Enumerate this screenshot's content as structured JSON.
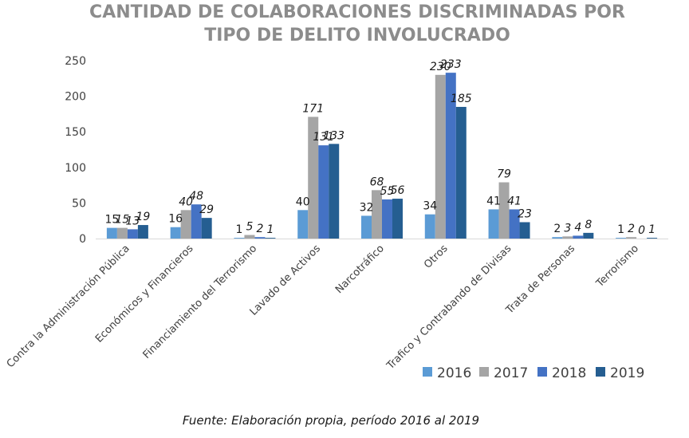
{
  "chart_data": {
    "type": "bar",
    "title_lines": [
      "CANTIDAD DE COLABORACIONES DISCRIMINADAS POR",
      "TIPO DE DELITO INVOLUCRADO"
    ],
    "categories": [
      "Contra la Administración Pública",
      "Económicos y Financieros",
      "Financiamiento del Terrorismo",
      "Lavado de Activos",
      "Narcotráfico",
      "Otros",
      "Trafico y Contrabando de Divisas",
      "Trata de Personas",
      "Terrorismo"
    ],
    "series": [
      {
        "name": "2016",
        "color": "#5b9bd5",
        "values": [
          15,
          16,
          1,
          40,
          32,
          34,
          41,
          2,
          1
        ]
      },
      {
        "name": "2017",
        "color": "#a5a5a5",
        "values": [
          15,
          40,
          5,
          171,
          68,
          230,
          79,
          3,
          2
        ]
      },
      {
        "name": "2018",
        "color": "#4472c4",
        "values": [
          13,
          48,
          2,
          131,
          55,
          233,
          41,
          4,
          0
        ]
      },
      {
        "name": "2019",
        "color": "#255e91",
        "values": [
          19,
          29,
          1,
          133,
          56,
          185,
          23,
          8,
          1
        ]
      }
    ],
    "ylim": [
      0,
      250
    ],
    "yticks": [
      0,
      50,
      100,
      150,
      200,
      250
    ],
    "grid": false,
    "legend_position": "bottom-right",
    "source": "Fuente: Elaboración propia, período 2016 al 2019"
  }
}
